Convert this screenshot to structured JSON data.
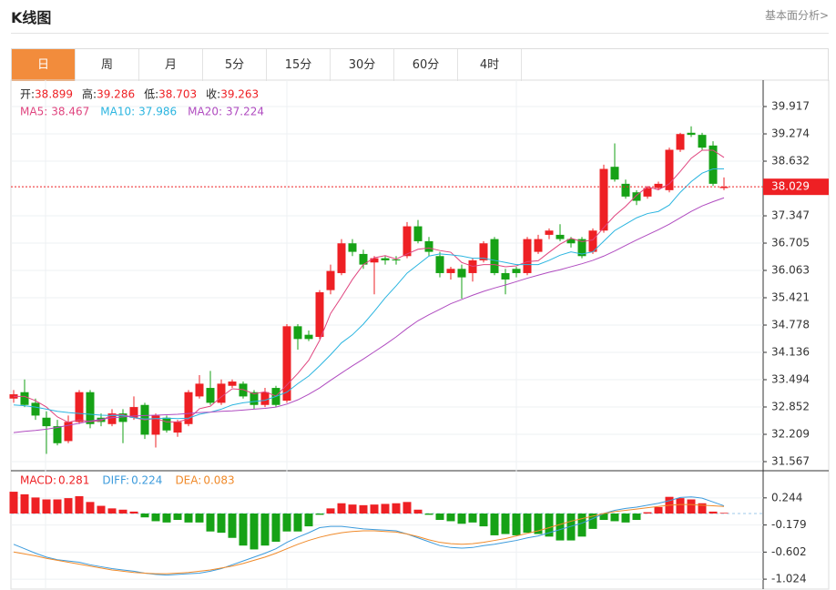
{
  "header": {
    "title": "K线图",
    "link": "基本面分析>"
  },
  "tabs": [
    "日",
    "周",
    "月",
    "5分",
    "15分",
    "30分",
    "60分",
    "4时"
  ],
  "active_tab": 0,
  "chart_data": [
    {
      "type": "candlestick",
      "info": [
        {
          "label": "开:",
          "value": 38.899
        },
        {
          "label": "高:",
          "value": 39.286
        },
        {
          "label": "低:",
          "value": 38.703
        },
        {
          "label": "收:",
          "value": 39.263
        }
      ],
      "open": [
        33.05,
        33.2,
        32.95,
        32.6,
        32.4,
        32.05,
        32.5,
        33.2,
        32.6,
        32.45,
        32.7,
        32.6,
        32.9,
        32.2,
        32.6,
        32.25,
        32.45,
        33.1,
        33.3,
        32.95,
        33.35,
        33.4,
        33.2,
        32.9,
        33.3,
        33.0,
        34.75,
        34.55,
        34.5,
        35.6,
        36.0,
        36.7,
        36.45,
        36.25,
        36.35,
        36.32,
        36.4,
        37.1,
        36.75,
        36.4,
        36.0,
        36.1,
        36.0,
        36.3,
        36.8,
        36.0,
        36.1,
        36.0,
        36.5,
        36.9,
        36.9,
        36.8,
        36.8,
        36.5,
        37.0,
        38.5,
        38.1,
        37.9,
        37.8,
        38.0,
        37.95,
        38.9,
        39.3,
        39.25,
        39.0,
        38.0
      ],
      "high": [
        33.25,
        33.5,
        33.05,
        32.75,
        32.55,
        32.65,
        33.25,
        33.25,
        32.7,
        32.8,
        32.8,
        33.1,
        32.95,
        32.7,
        32.65,
        32.55,
        33.25,
        33.6,
        33.7,
        33.5,
        33.5,
        33.45,
        33.25,
        33.3,
        33.35,
        34.8,
        34.8,
        34.65,
        35.6,
        36.2,
        36.8,
        36.8,
        36.55,
        36.4,
        36.4,
        36.4,
        37.2,
        37.25,
        36.85,
        36.5,
        36.15,
        36.2,
        36.35,
        36.75,
        36.85,
        36.1,
        36.15,
        36.85,
        36.9,
        37.05,
        37.15,
        36.85,
        36.85,
        37.05,
        38.55,
        39.05,
        38.2,
        37.95,
        38.05,
        38.15,
        38.95,
        39.3,
        39.45,
        39.3,
        39.1,
        38.25
      ],
      "low": [
        32.95,
        32.85,
        32.55,
        31.75,
        31.95,
        32.0,
        32.45,
        32.35,
        32.4,
        32.4,
        32.0,
        32.55,
        32.1,
        31.9,
        32.25,
        32.15,
        32.4,
        33.05,
        32.9,
        32.9,
        33.3,
        33.05,
        32.8,
        32.85,
        32.85,
        32.95,
        34.2,
        34.4,
        34.45,
        35.5,
        35.95,
        36.4,
        36.1,
        35.5,
        36.2,
        36.2,
        36.35,
        36.7,
        36.4,
        35.9,
        35.85,
        35.4,
        35.8,
        36.25,
        35.95,
        35.5,
        35.9,
        35.95,
        36.45,
        36.8,
        36.75,
        36.6,
        36.35,
        36.45,
        36.95,
        38.15,
        37.75,
        37.6,
        37.75,
        37.95,
        37.9,
        38.85,
        39.2,
        38.9,
        38.05,
        37.95
      ],
      "close": [
        33.15,
        32.9,
        32.65,
        32.4,
        32.0,
        32.5,
        33.2,
        32.45,
        32.5,
        32.7,
        32.5,
        32.85,
        32.2,
        32.65,
        32.3,
        32.5,
        33.2,
        33.4,
        32.95,
        33.4,
        33.45,
        33.1,
        32.9,
        33.2,
        32.9,
        34.75,
        34.45,
        34.45,
        35.55,
        36.05,
        36.7,
        36.5,
        36.2,
        36.35,
        36.3,
        36.3,
        37.1,
        36.75,
        36.5,
        36.0,
        36.1,
        35.9,
        36.3,
        36.7,
        36.0,
        35.85,
        36.0,
        36.8,
        36.8,
        37.0,
        36.8,
        36.7,
        36.4,
        37.0,
        38.45,
        38.2,
        37.8,
        37.7,
        38.0,
        38.1,
        38.9,
        39.27,
        39.25,
        38.95,
        38.1,
        38.03
      ],
      "up_color": "#ee2024",
      "down_color": "#16a216",
      "series": [
        {
          "name": "MA5:",
          "current": 38.467,
          "color": "#e0457f",
          "values": [
            33.1,
            33.1,
            33.0,
            32.85,
            32.62,
            32.49,
            32.55,
            32.51,
            32.53,
            32.67,
            32.67,
            32.6,
            32.55,
            32.58,
            32.5,
            32.5,
            32.57,
            32.81,
            32.87,
            33.09,
            33.28,
            33.26,
            33.16,
            33.21,
            33.11,
            33.37,
            33.64,
            33.95,
            34.42,
            35.05,
            35.44,
            35.85,
            36.2,
            36.36,
            36.41,
            36.33,
            36.45,
            36.56,
            36.59,
            36.53,
            36.49,
            36.25,
            36.16,
            36.2,
            36.2,
            36.15,
            36.17,
            36.27,
            36.29,
            36.49,
            36.68,
            36.82,
            36.74,
            36.78,
            37.07,
            37.35,
            37.57,
            37.83,
            38.03,
            37.96,
            38.1,
            38.39,
            38.7,
            38.89,
            38.89,
            38.72
          ]
        },
        {
          "name": "MA10:",
          "current": 37.986,
          "color": "#2bb5e0",
          "values": [
            32.9,
            32.88,
            32.85,
            32.8,
            32.75,
            32.72,
            32.7,
            32.68,
            32.66,
            32.65,
            32.65,
            32.6,
            32.57,
            32.58,
            32.59,
            32.58,
            32.59,
            32.68,
            32.73,
            32.8,
            32.9,
            32.95,
            32.98,
            33.01,
            33.1,
            33.2,
            33.4,
            33.58,
            33.82,
            34.08,
            34.36,
            34.55,
            34.8,
            35.1,
            35.42,
            35.7,
            36.0,
            36.2,
            36.4,
            36.45,
            36.43,
            36.4,
            36.35,
            36.35,
            36.3,
            36.25,
            36.2,
            36.2,
            36.2,
            36.3,
            36.42,
            36.5,
            36.45,
            36.5,
            36.75,
            37.0,
            37.15,
            37.3,
            37.4,
            37.45,
            37.6,
            37.9,
            38.15,
            38.35,
            38.45,
            38.45
          ]
        },
        {
          "name": "MA20:",
          "current": 37.224,
          "color": "#b04cc0",
          "values": [
            32.25,
            32.28,
            32.3,
            32.33,
            32.37,
            32.42,
            32.47,
            32.52,
            32.56,
            32.6,
            32.62,
            32.64,
            32.65,
            32.66,
            32.67,
            32.68,
            32.7,
            32.72,
            32.73,
            32.75,
            32.76,
            32.78,
            32.8,
            32.82,
            32.85,
            32.92,
            33.02,
            33.15,
            33.3,
            33.48,
            33.65,
            33.82,
            33.98,
            34.15,
            34.32,
            34.5,
            34.7,
            34.88,
            35.02,
            35.15,
            35.28,
            35.38,
            35.48,
            35.57,
            35.65,
            35.72,
            35.8,
            35.88,
            35.95,
            36.02,
            36.08,
            36.15,
            36.22,
            36.3,
            36.4,
            36.52,
            36.65,
            36.78,
            36.9,
            37.02,
            37.15,
            37.3,
            37.45,
            37.58,
            37.68,
            37.77
          ]
        }
      ],
      "last_price": 38.029,
      "last_price_color": "#ee2024",
      "ylim": [
        31.353,
        40.495
      ],
      "yticks": [
        39.917,
        39.274,
        38.632,
        37.347,
        36.705,
        36.063,
        35.421,
        34.778,
        34.136,
        33.494,
        32.852,
        32.209,
        31.567
      ],
      "grid": true
    },
    {
      "type": "macd",
      "up_color": "#ee2024",
      "down_color": "#16a216",
      "series": [
        {
          "name": "MACD:",
          "current": 0.281,
          "color": "#ee2024",
          "kind": "bar",
          "values": [
            0.34,
            0.3,
            0.25,
            0.22,
            0.22,
            0.24,
            0.27,
            0.18,
            0.12,
            0.08,
            0.06,
            0.03,
            -0.06,
            -0.12,
            -0.14,
            -0.1,
            -0.14,
            -0.14,
            -0.28,
            -0.3,
            -0.38,
            -0.5,
            -0.56,
            -0.5,
            -0.44,
            -0.28,
            -0.28,
            -0.2,
            -0.02,
            0.08,
            0.16,
            0.14,
            0.13,
            0.14,
            0.15,
            0.16,
            0.18,
            0.06,
            -0.02,
            -0.1,
            -0.12,
            -0.16,
            -0.14,
            -0.2,
            -0.34,
            -0.32,
            -0.34,
            -0.3,
            -0.32,
            -0.36,
            -0.42,
            -0.42,
            -0.36,
            -0.24,
            -0.1,
            -0.12,
            -0.14,
            -0.1,
            0.02,
            0.1,
            0.26,
            0.24,
            0.22,
            0.16,
            0.03,
            0.01
          ]
        },
        {
          "name": "DIFF:",
          "current": 0.224,
          "color": "#3c9bdc",
          "kind": "line",
          "values": [
            -0.48,
            -0.55,
            -0.62,
            -0.68,
            -0.72,
            -0.74,
            -0.76,
            -0.8,
            -0.83,
            -0.86,
            -0.88,
            -0.9,
            -0.93,
            -0.95,
            -0.96,
            -0.95,
            -0.94,
            -0.93,
            -0.9,
            -0.86,
            -0.8,
            -0.74,
            -0.68,
            -0.62,
            -0.55,
            -0.45,
            -0.37,
            -0.3,
            -0.22,
            -0.2,
            -0.2,
            -0.22,
            -0.24,
            -0.25,
            -0.26,
            -0.27,
            -0.32,
            -0.38,
            -0.44,
            -0.5,
            -0.53,
            -0.54,
            -0.53,
            -0.5,
            -0.48,
            -0.45,
            -0.42,
            -0.38,
            -0.35,
            -0.3,
            -0.25,
            -0.2,
            -0.15,
            -0.08,
            0.0,
            0.05,
            0.08,
            0.1,
            0.13,
            0.16,
            0.2,
            0.25,
            0.26,
            0.24,
            0.18,
            0.12
          ]
        },
        {
          "name": "DEA:",
          "current": 0.083,
          "color": "#f08a2a",
          "kind": "line",
          "values": [
            -0.6,
            -0.63,
            -0.66,
            -0.7,
            -0.73,
            -0.76,
            -0.79,
            -0.82,
            -0.85,
            -0.88,
            -0.9,
            -0.92,
            -0.93,
            -0.94,
            -0.94,
            -0.93,
            -0.92,
            -0.9,
            -0.88,
            -0.85,
            -0.82,
            -0.78,
            -0.73,
            -0.68,
            -0.62,
            -0.55,
            -0.48,
            -0.42,
            -0.37,
            -0.33,
            -0.3,
            -0.28,
            -0.27,
            -0.27,
            -0.28,
            -0.29,
            -0.32,
            -0.36,
            -0.41,
            -0.45,
            -0.47,
            -0.48,
            -0.47,
            -0.45,
            -0.42,
            -0.39,
            -0.35,
            -0.31,
            -0.27,
            -0.22,
            -0.17,
            -0.12,
            -0.08,
            -0.04,
            0.0,
            0.03,
            0.05,
            0.07,
            0.09,
            0.11,
            0.13,
            0.14,
            0.14,
            0.13,
            0.12,
            0.11
          ]
        }
      ],
      "ylim": [
        -1.179,
        0.625
      ],
      "yticks": [
        0.244,
        -0.179,
        -0.602,
        -1.024
      ],
      "grid": true
    }
  ]
}
